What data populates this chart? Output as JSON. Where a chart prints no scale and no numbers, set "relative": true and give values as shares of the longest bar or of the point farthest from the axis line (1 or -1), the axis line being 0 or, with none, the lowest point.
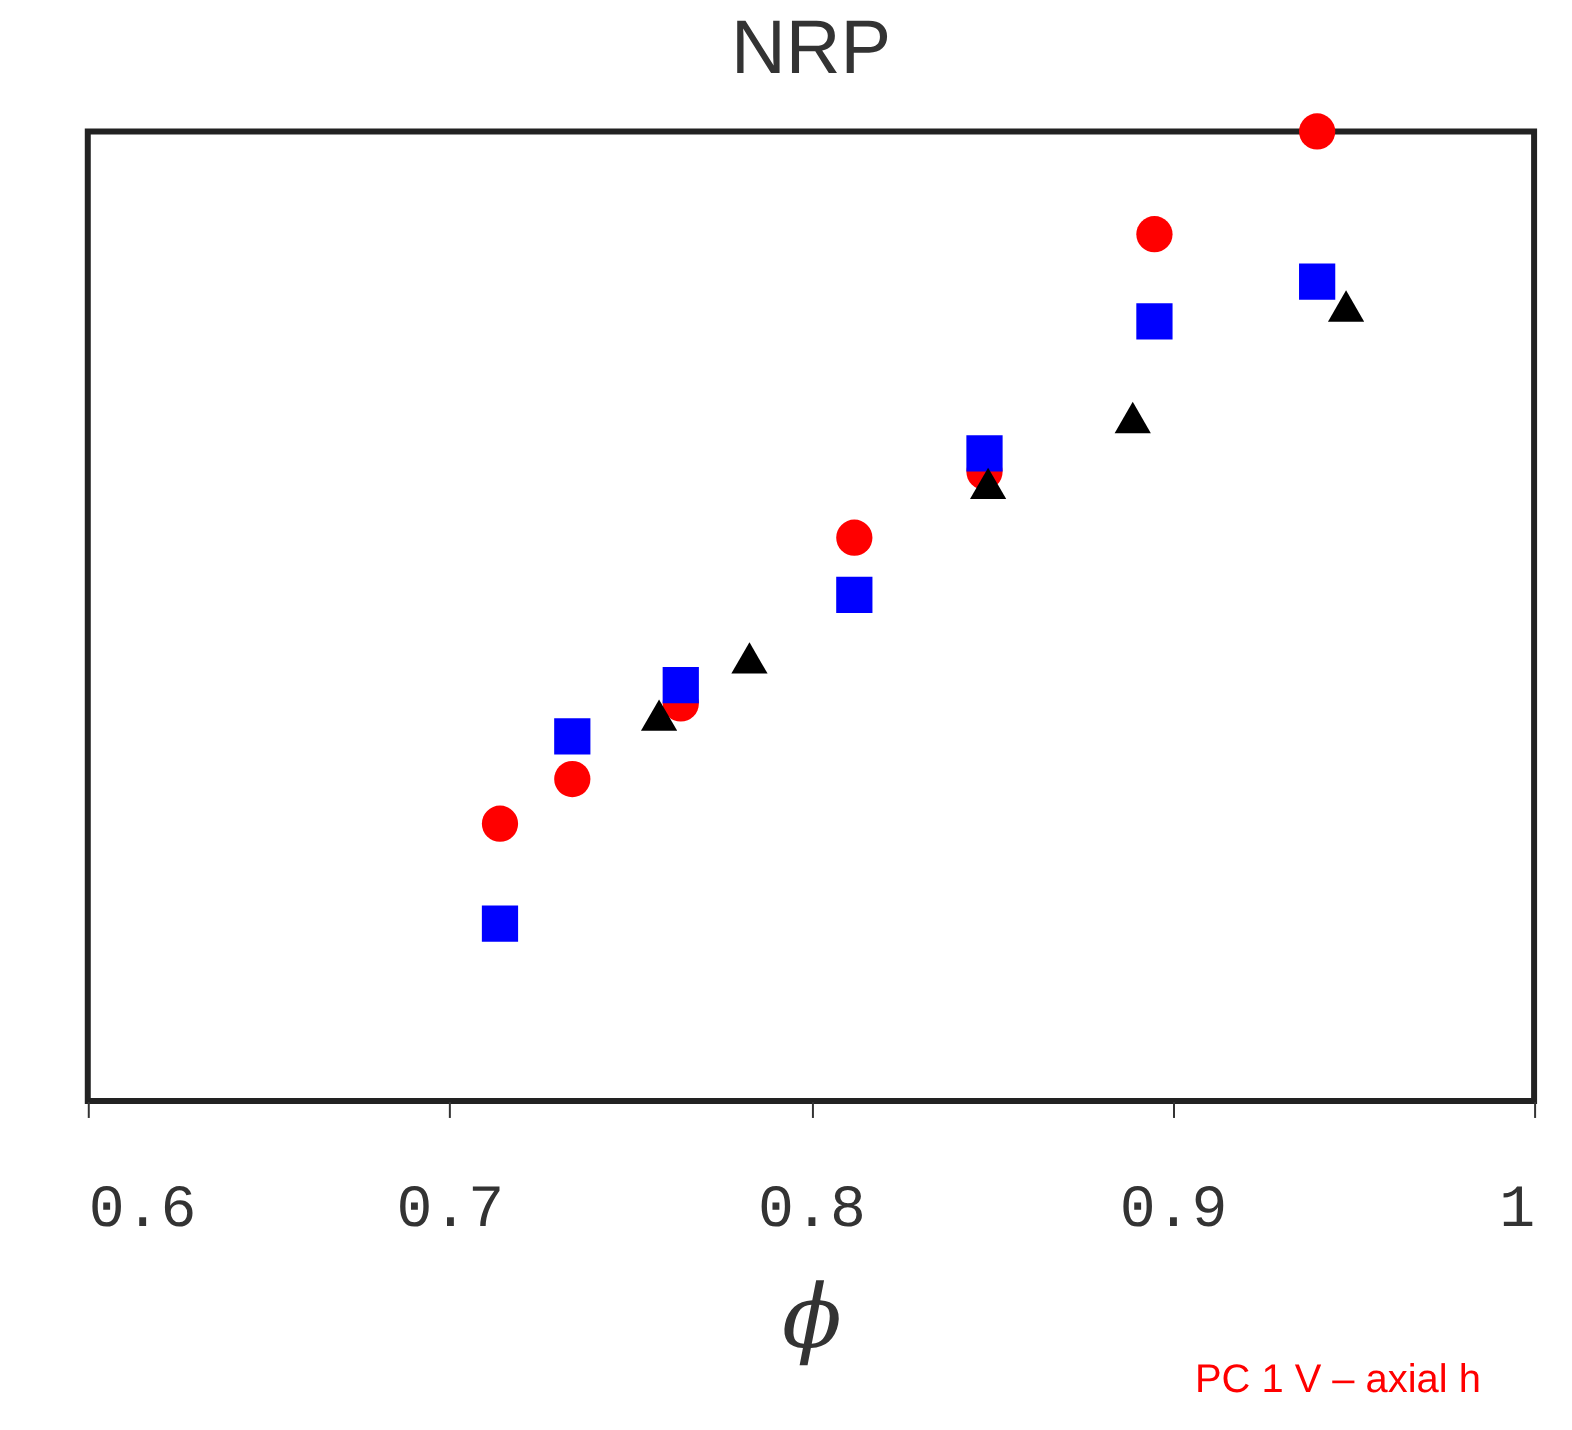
{
  "chart_data": {
    "type": "scatter",
    "title": "NRP",
    "xlabel": "ϕ",
    "relative": true,
    "xlim": [
      0.6,
      1.0
    ],
    "xticks": [
      0.6,
      0.7,
      0.8,
      0.9,
      1
    ],
    "grid": false,
    "legend": false,
    "annotations": [
      "PC 1 V – axial h"
    ],
    "series": [
      {
        "color": "#ff0000",
        "marker": "circle",
        "x": [
          0.714,
          0.734,
          0.764,
          0.812,
          0.848,
          0.895,
          0.94
        ],
        "values": [
          0.286,
          0.332,
          0.41,
          0.581,
          0.649,
          0.894,
          1
        ]
      },
      {
        "color": "#0000ff",
        "marker": "square",
        "x": [
          0.714,
          0.734,
          0.764,
          0.812,
          0.848,
          0.895,
          0.94
        ],
        "values": [
          0.183,
          0.376,
          0.429,
          0.522,
          0.668,
          0.804,
          0.845
        ]
      },
      {
        "color": "#000000",
        "marker": "triangle",
        "x": [
          0.758,
          0.783,
          0.849,
          0.889,
          0.948
        ],
        "values": [
          0.398,
          0.457,
          0.637,
          0.705,
          0.82
        ]
      }
    ]
  }
}
